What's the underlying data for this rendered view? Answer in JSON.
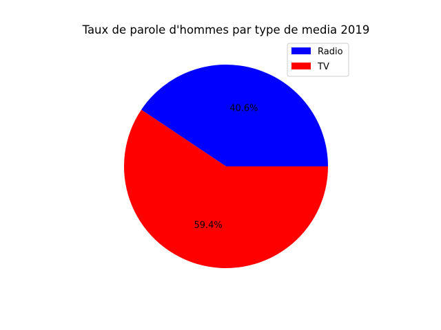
{
  "chart_data": {
    "type": "pie",
    "title": "Taux de parole d'hommes par type de media 2019",
    "slices": [
      {
        "label": "Radio",
        "value": 40.6,
        "pct_label": "40.6%",
        "color": "#0000ff"
      },
      {
        "label": "TV",
        "value": 59.4,
        "pct_label": "59.4%",
        "color": "#ff0000"
      }
    ],
    "start_angle_deg": 0,
    "direction": "counterclockwise",
    "legend_position": "upper right"
  }
}
